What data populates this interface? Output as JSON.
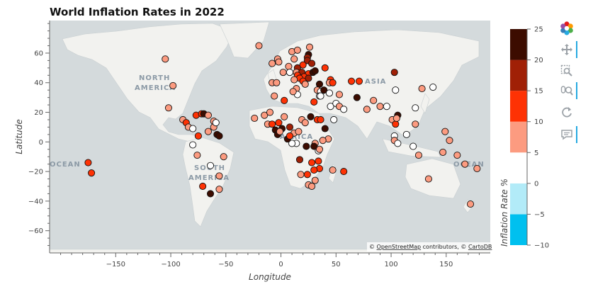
{
  "chart_data": {
    "type": "scatter",
    "title": "World Inflation Rates in 2022",
    "xlabel": "Longitude",
    "ylabel": "Latitude",
    "xlim": [
      -210,
      190
    ],
    "ylim": [
      -75,
      82
    ],
    "x_ticks": [
      -150,
      -100,
      -50,
      0,
      50,
      100,
      150
    ],
    "y_ticks": [
      -60,
      -40,
      -20,
      0,
      20,
      40,
      60
    ],
    "grid": false,
    "basemap": "CartoDB Positron",
    "map_labels": [
      "NORTH",
      "AMERICA",
      "SOUTH",
      "AMERICA",
      "ASIA",
      "OCEAN",
      "OCEAN",
      "AFRICA"
    ],
    "attribution": {
      "prefix": "© ",
      "osm": "OpenStreetMap",
      "middle": " contributors, © ",
      "carto": "CartoDB"
    },
    "colorbar": {
      "label": "Inflation Rate %",
      "range": [
        -10,
        25
      ],
      "ticks": [
        -10,
        -5,
        0,
        5,
        10,
        15,
        20,
        25
      ],
      "bins": [
        {
          "from": -10,
          "to": -5,
          "color": "#00c0ef"
        },
        {
          "from": -5,
          "to": 0,
          "color": "#b2ebf8"
        },
        {
          "from": 0,
          "to": 5,
          "color": "#ffffff"
        },
        {
          "from": 5,
          "to": 10,
          "color": "#fc9b80"
        },
        {
          "from": 10,
          "to": 15,
          "color": "#fe3204"
        },
        {
          "from": 15,
          "to": 20,
          "color": "#a02006"
        },
        {
          "from": 20,
          "to": 25,
          "color": "#3c0c00"
        }
      ]
    },
    "points": [
      {
        "x": -105,
        "y": 56,
        "v": 7
      },
      {
        "x": -98,
        "y": 38,
        "v": 8
      },
      {
        "x": -102,
        "y": 23,
        "v": 8
      },
      {
        "x": -89,
        "y": 15,
        "v": 7
      },
      {
        "x": -86,
        "y": 13,
        "v": 11
      },
      {
        "x": -84,
        "y": 10,
        "v": 8
      },
      {
        "x": -80,
        "y": 9,
        "v": 2
      },
      {
        "x": -77,
        "y": 18,
        "v": 11
      },
      {
        "x": -72,
        "y": 19,
        "v": 11
      },
      {
        "x": -70,
        "y": 19,
        "v": 21
      },
      {
        "x": -66,
        "y": 18,
        "v": 7
      },
      {
        "x": -61,
        "y": 14,
        "v": 9
      },
      {
        "x": -61,
        "y": 10,
        "v": 8
      },
      {
        "x": -59,
        "y": 13,
        "v": 2
      },
      {
        "x": -80,
        "y": -2,
        "v": 3
      },
      {
        "x": -75,
        "y": 4,
        "v": 12
      },
      {
        "x": -66,
        "y": 7,
        "v": 9
      },
      {
        "x": -58,
        "y": 5,
        "v": 20
      },
      {
        "x": -56,
        "y": 4,
        "v": 20
      },
      {
        "x": -76,
        "y": -9,
        "v": 8
      },
      {
        "x": -64,
        "y": -16,
        "v": 2
      },
      {
        "x": -52,
        "y": -10,
        "v": 8
      },
      {
        "x": -56,
        "y": -23,
        "v": 8
      },
      {
        "x": -71,
        "y": -30,
        "v": 11
      },
      {
        "x": -64,
        "y": -35,
        "v": 24
      },
      {
        "x": -56,
        "y": -32,
        "v": 8
      },
      {
        "x": -175,
        "y": -14,
        "v": 11
      },
      {
        "x": -172,
        "y": -21,
        "v": 11
      },
      {
        "x": -20,
        "y": 65,
        "v": 8
      },
      {
        "x": -3,
        "y": 56,
        "v": 9
      },
      {
        "x": -8,
        "y": 53,
        "v": 8
      },
      {
        "x": -2,
        "y": 54,
        "v": 9
      },
      {
        "x": 2,
        "y": 47,
        "v": 6
      },
      {
        "x": -8,
        "y": 40,
        "v": 8
      },
      {
        "x": -4,
        "y": 40,
        "v": 9
      },
      {
        "x": 7,
        "y": 51,
        "v": 8
      },
      {
        "x": 8,
        "y": 47,
        "v": 3
      },
      {
        "x": 12,
        "y": 56,
        "v": 9
      },
      {
        "x": 10,
        "y": 61,
        "v": 6
      },
      {
        "x": 15,
        "y": 62,
        "v": 8
      },
      {
        "x": 26,
        "y": 64,
        "v": 8
      },
      {
        "x": 25,
        "y": 59,
        "v": 21
      },
      {
        "x": 24,
        "y": 57,
        "v": 18
      },
      {
        "x": 24,
        "y": 55,
        "v": 19
      },
      {
        "x": 20,
        "y": 52,
        "v": 14
      },
      {
        "x": 15,
        "y": 50,
        "v": 15
      },
      {
        "x": 14,
        "y": 47,
        "v": 9
      },
      {
        "x": 19,
        "y": 47,
        "v": 15
      },
      {
        "x": 15,
        "y": 45,
        "v": 10
      },
      {
        "x": 25,
        "y": 46,
        "v": 13
      },
      {
        "x": 28,
        "y": 53,
        "v": 15
      },
      {
        "x": 29,
        "y": 47,
        "v": 24
      },
      {
        "x": 31,
        "y": 48,
        "v": 20
      },
      {
        "x": 21,
        "y": 44,
        "v": 12
      },
      {
        "x": 25,
        "y": 43,
        "v": 15
      },
      {
        "x": 17,
        "y": 43,
        "v": 12
      },
      {
        "x": 20,
        "y": 41,
        "v": 14
      },
      {
        "x": 22,
        "y": 39,
        "v": 9
      },
      {
        "x": 12,
        "y": 42,
        "v": 8
      },
      {
        "x": 14,
        "y": 36,
        "v": 6
      },
      {
        "x": 35,
        "y": 39,
        "v": 22
      },
      {
        "x": 45,
        "y": 42,
        "v": 11
      },
      {
        "x": 44,
        "y": 40,
        "v": 8
      },
      {
        "x": 47,
        "y": 40,
        "v": 14
      },
      {
        "x": 33,
        "y": 35,
        "v": 8
      },
      {
        "x": 36,
        "y": 34,
        "v": 2
      },
      {
        "x": 35,
        "y": 31,
        "v": 4
      },
      {
        "x": 36,
        "y": 31,
        "v": 3
      },
      {
        "x": 39,
        "y": 35,
        "v": 22
      },
      {
        "x": 44,
        "y": 33,
        "v": 4
      },
      {
        "x": 53,
        "y": 32,
        "v": 9
      },
      {
        "x": 45,
        "y": 24,
        "v": 2
      },
      {
        "x": 50,
        "y": 26,
        "v": 4
      },
      {
        "x": 53,
        "y": 24,
        "v": 5
      },
      {
        "x": 57,
        "y": 22,
        "v": 2
      },
      {
        "x": 48,
        "y": 15,
        "v": 3
      },
      {
        "x": 64,
        "y": 41,
        "v": 11
      },
      {
        "x": 71,
        "y": 41,
        "v": 14
      },
      {
        "x": 69,
        "y": 30,
        "v": 20
      },
      {
        "x": 84,
        "y": 28,
        "v": 8
      },
      {
        "x": 78,
        "y": 22,
        "v": 7
      },
      {
        "x": 90,
        "y": 24,
        "v": 7
      },
      {
        "x": 96,
        "y": 24,
        "v": 2
      },
      {
        "x": 101,
        "y": 15,
        "v": 6
      },
      {
        "x": 106,
        "y": 18,
        "v": 22
      },
      {
        "x": 104,
        "y": 12,
        "v": 11
      },
      {
        "x": 105,
        "y": 16,
        "v": 8
      },
      {
        "x": 103,
        "y": 47,
        "v": 15
      },
      {
        "x": 104,
        "y": 35,
        "v": 2
      },
      {
        "x": 122,
        "y": 23,
        "v": 2
      },
      {
        "x": 128,
        "y": 36,
        "v": 5
      },
      {
        "x": 138,
        "y": 37,
        "v": 2
      },
      {
        "x": 122,
        "y": 12,
        "v": 6
      },
      {
        "x": 114,
        "y": 5,
        "v": 3
      },
      {
        "x": 103,
        "y": 4,
        "v": 3
      },
      {
        "x": 103,
        "y": 1,
        "v": 6
      },
      {
        "x": 106,
        "y": -1,
        "v": 4
      },
      {
        "x": 120,
        "y": -3,
        "v": 4
      },
      {
        "x": 147,
        "y": -7,
        "v": 5
      },
      {
        "x": 125,
        "y": -9,
        "v": 7
      },
      {
        "x": 134,
        "y": -25,
        "v": 7
      },
      {
        "x": 160,
        "y": -9,
        "v": 6
      },
      {
        "x": 167,
        "y": -15,
        "v": 6
      },
      {
        "x": 178,
        "y": -18,
        "v": 5
      },
      {
        "x": 149,
        "y": 7,
        "v": 7
      },
      {
        "x": 172,
        "y": -42,
        "v": 7
      },
      {
        "x": 153,
        "y": 1,
        "v": 5
      },
      {
        "x": -15,
        "y": 18,
        "v": 7
      },
      {
        "x": -12,
        "y": 12,
        "v": 8
      },
      {
        "x": -10,
        "y": 20,
        "v": 9
      },
      {
        "x": -8,
        "y": 12,
        "v": 11
      },
      {
        "x": -5,
        "y": 8,
        "v": 22
      },
      {
        "x": -2,
        "y": 13,
        "v": 12
      },
      {
        "x": 1,
        "y": 9,
        "v": 22
      },
      {
        "x": 3,
        "y": 17,
        "v": 8
      },
      {
        "x": 8,
        "y": 10,
        "v": 18
      },
      {
        "x": 12,
        "y": 6,
        "v": 5
      },
      {
        "x": 16,
        "y": 7,
        "v": 9
      },
      {
        "x": 19,
        "y": 15,
        "v": 6
      },
      {
        "x": 22,
        "y": 13,
        "v": 6
      },
      {
        "x": 27,
        "y": 17,
        "v": 23
      },
      {
        "x": 30,
        "y": 27,
        "v": 12
      },
      {
        "x": 33,
        "y": 15,
        "v": 10
      },
      {
        "x": 36,
        "y": 15,
        "v": 13
      },
      {
        "x": 40,
        "y": 9,
        "v": 21
      },
      {
        "x": 43,
        "y": 2,
        "v": 7
      },
      {
        "x": 38,
        "y": 1,
        "v": 7
      },
      {
        "x": 31,
        "y": -1,
        "v": 5
      },
      {
        "x": 30,
        "y": -3,
        "v": 21
      },
      {
        "x": 34,
        "y": -6,
        "v": 4
      },
      {
        "x": 35,
        "y": -5,
        "v": 7
      },
      {
        "x": 23,
        "y": -3,
        "v": 22
      },
      {
        "x": 14,
        "y": -1,
        "v": 2
      },
      {
        "x": 10,
        "y": -1,
        "v": 3
      },
      {
        "x": 17,
        "y": -12,
        "v": 19
      },
      {
        "x": 28,
        "y": -14,
        "v": 11
      },
      {
        "x": 34,
        "y": -13,
        "v": 12
      },
      {
        "x": 35,
        "y": -18,
        "v": 10
      },
      {
        "x": 30,
        "y": -19,
        "v": 14
      },
      {
        "x": 24,
        "y": -22,
        "v": 11
      },
      {
        "x": 18,
        "y": -22,
        "v": 6
      },
      {
        "x": 25,
        "y": -29,
        "v": 7
      },
      {
        "x": 31,
        "y": -26,
        "v": 6
      },
      {
        "x": 28,
        "y": -30,
        "v": 6
      },
      {
        "x": 47,
        "y": -19,
        "v": 8
      },
      {
        "x": 57,
        "y": -20,
        "v": 11
      },
      {
        "x": 6,
        "y": 2,
        "v": 21
      },
      {
        "x": 8,
        "y": 4,
        "v": 10
      },
      {
        "x": -3,
        "y": 5,
        "v": 21
      },
      {
        "x": -1,
        "y": 7,
        "v": 9
      },
      {
        "x": 15,
        "y": 32,
        "v": 4
      },
      {
        "x": 11,
        "y": 34,
        "v": 7
      },
      {
        "x": 3,
        "y": 28,
        "v": 10
      },
      {
        "x": -6,
        "y": 31,
        "v": 7
      },
      {
        "x": -24,
        "y": 16,
        "v": 8
      },
      {
        "x": 40,
        "y": 50,
        "v": 13
      }
    ]
  }
}
